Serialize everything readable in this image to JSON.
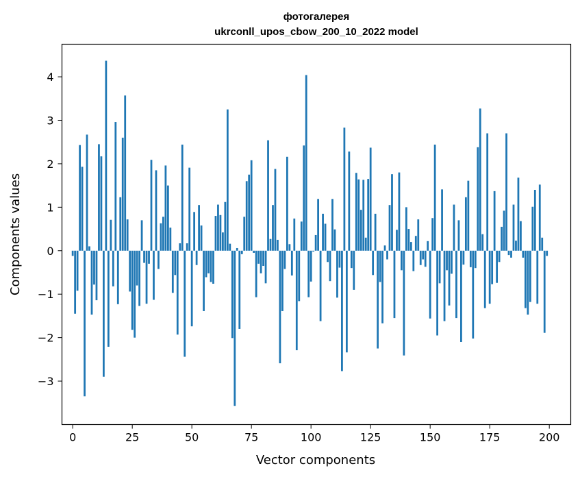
{
  "chart_data": {
    "type": "bar",
    "title": "фотогалерея",
    "subtitle": "ukrconll_upos_cbow_200_10_2022 model",
    "xlabel": "Vector components",
    "ylabel": "Components values",
    "xlim": [
      -4.5,
      209.0
    ],
    "ylim": [
      -4.0,
      4.75
    ],
    "xticks": [
      0,
      25,
      50,
      75,
      100,
      125,
      150,
      175,
      200
    ],
    "yticks": [
      -3,
      -2,
      -1,
      0,
      1,
      2,
      3,
      4
    ],
    "grid": false,
    "legend": "none",
    "bar_color": "#1f77b4",
    "values": [
      -0.12,
      -1.45,
      -0.92,
      2.43,
      1.93,
      -3.35,
      2.67,
      0.1,
      -1.47,
      -0.78,
      -1.14,
      2.45,
      2.17,
      -2.9,
      4.37,
      -2.21,
      0.71,
      -0.82,
      2.96,
      -1.23,
      1.23,
      2.6,
      3.57,
      0.72,
      -0.94,
      -1.82,
      -2.0,
      -0.8,
      -1.27,
      0.7,
      -0.28,
      -1.22,
      -0.3,
      2.09,
      -1.13,
      1.85,
      -0.42,
      0.63,
      0.78,
      1.96,
      1.5,
      0.53,
      -0.97,
      -0.56,
      -1.93,
      0.17,
      2.44,
      -2.44,
      0.17,
      1.91,
      -1.74,
      0.89,
      -0.33,
      1.05,
      0.58,
      -1.39,
      -0.61,
      -0.52,
      -0.72,
      -0.76,
      0.8,
      1.06,
      0.82,
      0.42,
      1.12,
      3.25,
      0.16,
      -2.01,
      -3.57,
      0.06,
      -1.8,
      -0.08,
      0.78,
      1.6,
      1.75,
      2.08,
      -0.05,
      -1.07,
      -0.3,
      -0.52,
      -0.35,
      -0.75,
      2.54,
      0.27,
      1.05,
      1.88,
      0.25,
      -2.59,
      -1.39,
      -0.42,
      2.16,
      0.15,
      -0.57,
      0.74,
      -2.29,
      -1.16,
      0.67,
      2.42,
      4.04,
      -1.07,
      -0.71,
      -0.02,
      0.36,
      1.19,
      -1.62,
      0.85,
      0.62,
      -0.26,
      -0.7,
      1.19,
      0.49,
      -1.08,
      -0.39,
      -2.77,
      2.83,
      -2.34,
      2.28,
      -0.4,
      -0.9,
      1.79,
      1.64,
      0.94,
      1.63,
      0.3,
      1.65,
      2.37,
      -0.56,
      0.85,
      -2.25,
      -0.72,
      -1.67,
      0.12,
      -0.2,
      1.05,
      1.76,
      -1.55,
      0.48,
      1.8,
      -0.45,
      -2.41,
      1.0,
      0.5,
      0.2,
      -0.47,
      0.34,
      0.72,
      -0.33,
      -0.2,
      -0.37,
      0.22,
      -1.56,
      0.75,
      2.44,
      -1.95,
      -0.75,
      1.41,
      -1.62,
      -0.45,
      -1.26,
      -0.53,
      1.06,
      -1.55,
      0.7,
      -2.1,
      -0.32,
      1.23,
      1.61,
      -0.38,
      -2.02,
      -0.4,
      2.38,
      3.27,
      0.38,
      -1.32,
      2.7,
      -1.22,
      -0.77,
      1.37,
      -0.74,
      -0.26,
      0.55,
      0.92,
      2.7,
      -0.1,
      -0.16,
      1.06,
      0.23,
      1.68,
      0.68,
      -0.16,
      -1.32,
      -1.47,
      -1.18,
      1.01,
      1.4,
      -1.22,
      1.52,
      0.3,
      -1.89,
      -0.12
    ]
  }
}
